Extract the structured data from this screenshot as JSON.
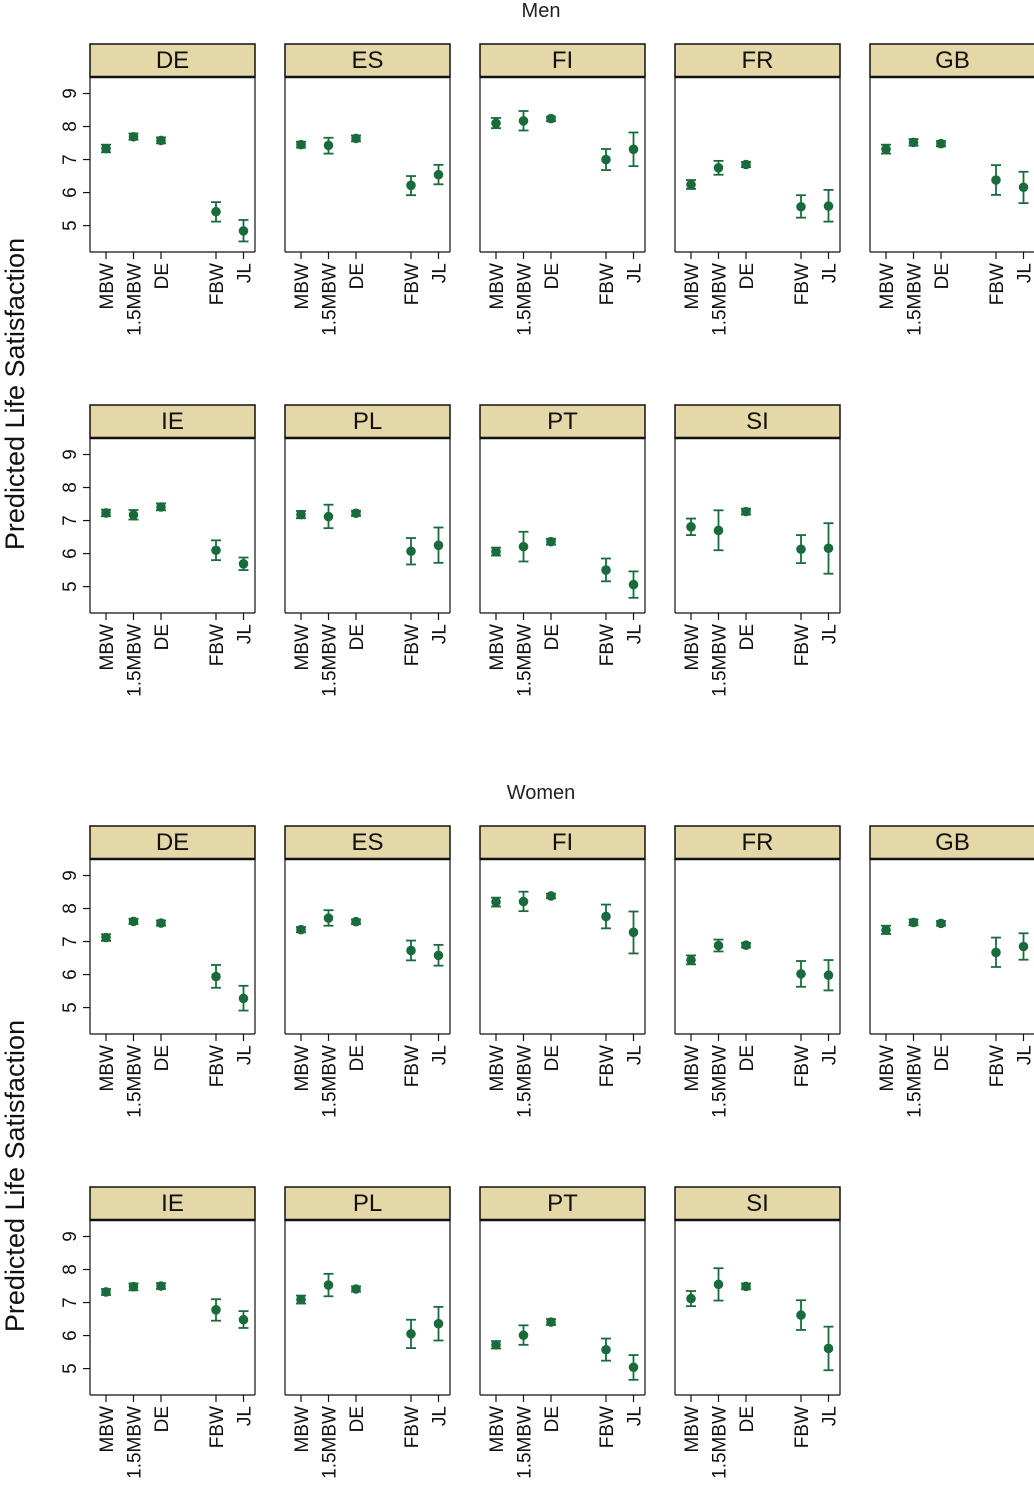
{
  "colors": {
    "point": "#1a6b3c",
    "strip": "#e5d8a8",
    "axis": "#111111"
  },
  "chart_data": {
    "type": "scatter",
    "style": "faceted point estimates with 95% confidence intervals",
    "categories": [
      "MBW",
      "1.5MBW",
      "DE",
      "FBW",
      "JL"
    ],
    "category_positions": [
      1,
      2,
      3,
      5,
      6
    ],
    "ylabel": "Predicted Life Satisfaction",
    "ylim": [
      4.2,
      9.5
    ],
    "yticks": [
      5,
      6,
      7,
      8,
      9
    ],
    "grid": false,
    "groups": [
      {
        "title": "Men",
        "panels": [
          {
            "country": "DE",
            "est": [
              7.33,
              7.69,
              7.58,
              5.42,
              4.84
            ],
            "lo": [
              7.22,
              7.6,
              7.49,
              5.12,
              4.52
            ],
            "hi": [
              7.45,
              7.79,
              7.67,
              5.71,
              5.17
            ]
          },
          {
            "country": "ES",
            "est": [
              7.45,
              7.43,
              7.64,
              6.22,
              6.54
            ],
            "lo": [
              7.36,
              7.18,
              7.55,
              5.92,
              6.25
            ],
            "hi": [
              7.54,
              7.66,
              7.73,
              6.5,
              6.84
            ]
          },
          {
            "country": "FI",
            "est": [
              8.1,
              8.17,
              8.24,
              7.0,
              7.31
            ],
            "lo": [
              7.95,
              7.88,
              8.16,
              6.68,
              6.8
            ],
            "hi": [
              8.26,
              8.47,
              8.3,
              7.32,
              7.82
            ]
          },
          {
            "country": "FR",
            "est": [
              6.24,
              6.75,
              6.85,
              5.57,
              5.59
            ],
            "lo": [
              6.11,
              6.54,
              6.77,
              5.24,
              5.12
            ],
            "hi": [
              6.38,
              6.96,
              6.93,
              5.92,
              6.08
            ]
          },
          {
            "country": "GB",
            "est": [
              7.31,
              7.52,
              7.48,
              6.38,
              6.16
            ],
            "lo": [
              7.18,
              7.42,
              7.4,
              5.93,
              5.68
            ],
            "hi": [
              7.45,
              7.62,
              7.56,
              6.83,
              6.63
            ]
          },
          {
            "country": "IE",
            "est": [
              7.23,
              7.17,
              7.41,
              6.1,
              5.69
            ],
            "lo": [
              7.13,
              7.03,
              7.31,
              5.8,
              5.5
            ],
            "hi": [
              7.33,
              7.32,
              7.52,
              6.4,
              5.88
            ]
          },
          {
            "country": "PL",
            "est": [
              7.18,
              7.12,
              7.22,
              6.07,
              6.25
            ],
            "lo": [
              7.07,
              6.77,
              7.14,
              5.67,
              5.72
            ],
            "hi": [
              7.29,
              7.48,
              7.3,
              6.47,
              6.79
            ]
          },
          {
            "country": "PT",
            "est": [
              6.06,
              6.21,
              6.36,
              5.5,
              5.06
            ],
            "lo": [
              5.94,
              5.76,
              6.27,
              5.16,
              4.66
            ],
            "hi": [
              6.18,
              6.66,
              6.45,
              5.85,
              5.46
            ]
          },
          {
            "country": "SI",
            "est": [
              6.81,
              6.7,
              7.27,
              6.13,
              6.16
            ],
            "lo": [
              6.56,
              6.1,
              7.18,
              5.71,
              5.39
            ],
            "hi": [
              7.06,
              7.31,
              7.36,
              6.56,
              6.92
            ]
          }
        ]
      },
      {
        "title": "Women",
        "panels": [
          {
            "country": "DE",
            "est": [
              7.12,
              7.61,
              7.56,
              5.94,
              5.28
            ],
            "lo": [
              7.02,
              7.53,
              7.48,
              5.6,
              4.91
            ],
            "hi": [
              7.22,
              7.69,
              7.64,
              6.29,
              5.66
            ]
          },
          {
            "country": "ES",
            "est": [
              7.36,
              7.71,
              7.6,
              6.73,
              6.58
            ],
            "lo": [
              7.28,
              7.48,
              7.53,
              6.43,
              6.27
            ],
            "hi": [
              7.44,
              7.95,
              7.67,
              7.03,
              6.9
            ]
          },
          {
            "country": "FI",
            "est": [
              8.2,
              8.21,
              8.38,
              7.76,
              7.28
            ],
            "lo": [
              8.06,
              7.92,
              8.31,
              7.4,
              6.64
            ],
            "hi": [
              8.33,
              8.51,
              8.45,
              8.12,
              7.91
            ]
          },
          {
            "country": "FR",
            "est": [
              6.44,
              6.88,
              6.89,
              6.02,
              5.98
            ],
            "lo": [
              6.31,
              6.7,
              6.82,
              5.63,
              5.52
            ],
            "hi": [
              6.58,
              7.06,
              6.96,
              6.41,
              6.44
            ]
          },
          {
            "country": "GB",
            "est": [
              7.35,
              7.58,
              7.55,
              6.67,
              6.85
            ],
            "lo": [
              7.23,
              7.49,
              7.48,
              6.23,
              6.45
            ],
            "hi": [
              7.48,
              7.67,
              7.62,
              7.12,
              7.25
            ]
          },
          {
            "country": "IE",
            "est": [
              7.32,
              7.48,
              7.5,
              6.78,
              6.48
            ],
            "lo": [
              7.23,
              7.37,
              7.41,
              6.45,
              6.23
            ],
            "hi": [
              7.41,
              7.58,
              7.59,
              7.1,
              6.74
            ]
          },
          {
            "country": "PL",
            "est": [
              7.09,
              7.53,
              7.41,
              6.05,
              6.36
            ],
            "lo": [
              6.97,
              7.19,
              7.33,
              5.62,
              5.85
            ],
            "hi": [
              7.21,
              7.87,
              7.49,
              6.48,
              6.87
            ]
          },
          {
            "country": "PT",
            "est": [
              5.72,
              6.01,
              6.41,
              5.57,
              5.04
            ],
            "lo": [
              5.61,
              5.72,
              6.32,
              5.24,
              4.66
            ],
            "hi": [
              5.83,
              6.31,
              6.5,
              5.91,
              5.41
            ]
          },
          {
            "country": "SI",
            "est": [
              7.12,
              7.55,
              7.49,
              6.62,
              5.61
            ],
            "lo": [
              6.89,
              7.06,
              7.4,
              6.17,
              4.95
            ],
            "hi": [
              7.35,
              8.04,
              7.58,
              7.07,
              6.27
            ]
          }
        ]
      }
    ]
  }
}
